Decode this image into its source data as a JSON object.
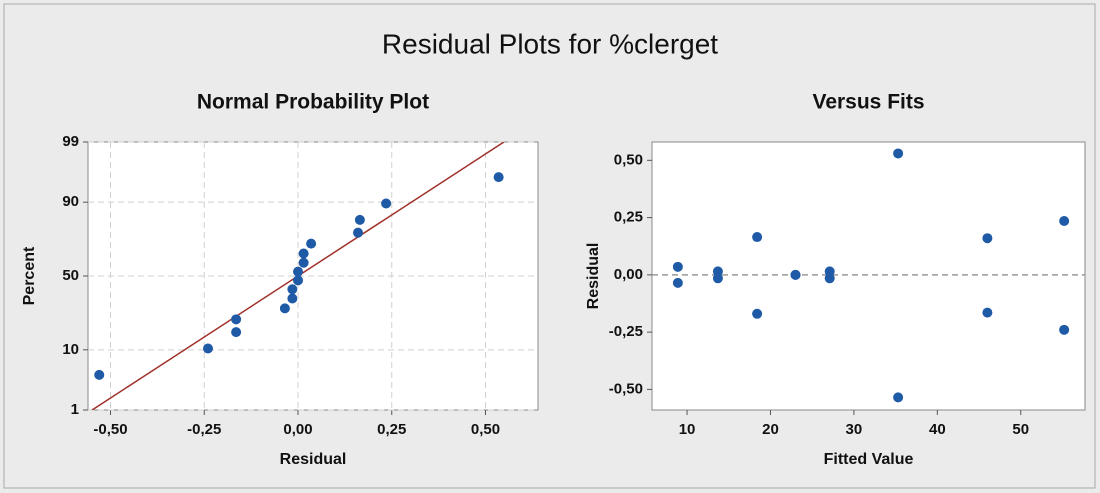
{
  "title": "Residual Plots for %clerget",
  "chart_data": [
    {
      "type": "scatter",
      "title": "Normal Probability Plot",
      "xlabel": "Residual",
      "ylabel": "Percent",
      "x": [
        -0.53,
        -0.24,
        -0.165,
        -0.165,
        -0.035,
        -0.015,
        -0.015,
        0,
        0,
        0.015,
        0.015,
        0.035,
        0.16,
        0.165,
        0.235,
        0.535
      ],
      "values": [
        4.3,
        10.4,
        16.5,
        22.6,
        28.7,
        34.8,
        40.9,
        47.0,
        53.0,
        59.1,
        65.2,
        71.3,
        77.4,
        83.5,
        89.6,
        95.7
      ],
      "xlim": [
        -0.56,
        0.64
      ],
      "ylim": [
        1,
        99
      ],
      "yscale": "normal",
      "xticks": [
        {
          "value": -0.5,
          "label": "-0,50"
        },
        {
          "value": -0.25,
          "label": "-0,25"
        },
        {
          "value": 0,
          "label": "0,00"
        },
        {
          "value": 0.25,
          "label": "0,25"
        },
        {
          "value": 0.5,
          "label": "0,50"
        }
      ],
      "yticks": [
        1,
        10,
        50,
        90,
        99
      ],
      "grid": true,
      "color": "#1f5aa6",
      "fit_line": {
        "mean": 0.0,
        "std": 0.236,
        "color": "#a0302a"
      }
    },
    {
      "type": "scatter",
      "title": "Versus Fits",
      "xlabel": "Fitted Value",
      "ylabel": "Residual",
      "x": [
        8.9,
        8.9,
        13.7,
        13.7,
        18.4,
        18.4,
        23.0,
        23.0,
        27.1,
        27.1,
        35.3,
        35.3,
        46.0,
        46.0,
        55.2,
        55.2
      ],
      "values": [
        0.035,
        -0.035,
        0.015,
        -0.015,
        0.165,
        -0.17,
        0,
        0,
        0.015,
        -0.015,
        0.53,
        -0.535,
        0.16,
        -0.165,
        0.235,
        -0.24
      ],
      "xlim": [
        5.8,
        57.7
      ],
      "ylim": [
        -0.59,
        0.58
      ],
      "xticks": [
        10,
        20,
        30,
        40,
        50
      ],
      "yticks": [
        {
          "value": -0.5,
          "label": "-0,50"
        },
        {
          "value": -0.25,
          "label": "-0,25"
        },
        {
          "value": 0,
          "label": "0,00"
        },
        {
          "value": 0.25,
          "label": "0,25"
        },
        {
          "value": 0.5,
          "label": "0,50"
        }
      ],
      "grid": false,
      "hline": 0,
      "color": "#1f5aa6"
    }
  ]
}
